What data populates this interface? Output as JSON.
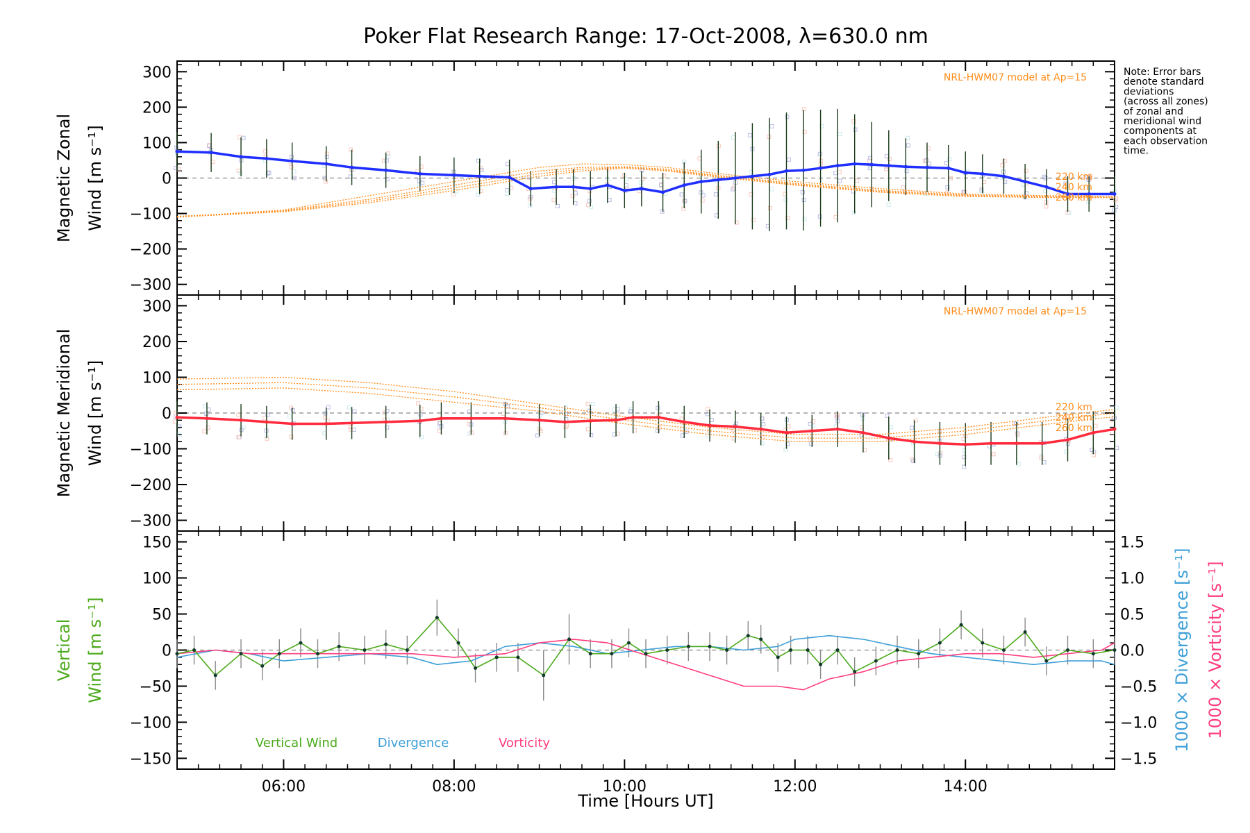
{
  "chart_data": {
    "title": "Poker Flat Research Range: 17-Oct-2008, λ=630.0 nm",
    "xlabel": "Time [Hours UT]",
    "xlim": [
      4.75,
      15.75
    ],
    "xticks": [
      6,
      8,
      10,
      12,
      14
    ],
    "xtick_labels": [
      "06:00",
      "08:00",
      "10:00",
      "12:00",
      "14:00"
    ],
    "note": [
      "Note: Error bars",
      "denote standard",
      "deviations",
      "(across all zones)",
      "of zonal and",
      "meridional wind",
      "components at",
      "each observation",
      "time."
    ],
    "colors": {
      "zonal": "#1f2fff",
      "meridional": "#ff2a3c",
      "model": "#ff8c1a",
      "vertical": "#4caa1c",
      "divergence": "#3d9fd8",
      "vorticity": "#ff3d7f",
      "errorbar": "#1a3a1a",
      "zone_points": "#9aa0d8"
    },
    "panels": [
      {
        "id": "zonal",
        "type": "line",
        "ylabel_line1": "Magnetic Zonal",
        "ylabel_line2": "Wind [m s⁻¹]",
        "ylim": [
          -330,
          330
        ],
        "yticks": [
          -300,
          -200,
          -100,
          0,
          100,
          200,
          300
        ],
        "ytick_labels": [
          "−300",
          "−200",
          "−100",
          "0",
          "100",
          "200",
          "300"
        ],
        "model_label": "NRL-HWM07 model at Ap=15",
        "altitude_labels": [
          "220 km",
          "240 km",
          "260 km"
        ],
        "series": [
          {
            "name": "Magnetic Zonal Wind",
            "x": [
              4.75,
              5.15,
              5.5,
              5.8,
              6.1,
              6.5,
              6.8,
              7.2,
              7.6,
              8.0,
              8.3,
              8.65,
              8.9,
              9.2,
              9.4,
              9.6,
              9.8,
              10.0,
              10.2,
              10.45,
              10.7,
              10.9,
              11.1,
              11.3,
              11.5,
              11.7,
              11.9,
              12.1,
              12.3,
              12.5,
              12.7,
              12.9,
              13.1,
              13.3,
              13.55,
              13.8,
              14.0,
              14.2,
              14.45,
              14.7,
              14.95,
              15.2,
              15.45,
              15.75
            ],
            "y": [
              75,
              72,
              60,
              55,
              48,
              40,
              30,
              22,
              12,
              8,
              5,
              2,
              -30,
              -25,
              -25,
              -30,
              -20,
              -35,
              -30,
              -40,
              -20,
              -10,
              -5,
              0,
              5,
              10,
              20,
              22,
              28,
              35,
              40,
              38,
              35,
              32,
              30,
              28,
              15,
              12,
              5,
              -10,
              -25,
              -45,
              -45,
              -45
            ],
            "err": [
              55,
              55,
              55,
              55,
              52,
              50,
              50,
              50,
              50,
              50,
              50,
              50,
              50,
              50,
              50,
              50,
              50,
              50,
              50,
              55,
              65,
              90,
              110,
              130,
              150,
              160,
              165,
              170,
              165,
              160,
              140,
              120,
              100,
              80,
              70,
              65,
              60,
              55,
              50,
              50,
              50,
              50,
              50,
              50
            ]
          },
          {
            "name": "model 220 km",
            "x": [
              4.75,
              6,
              7,
              8,
              9,
              9.5,
              10,
              10.5,
              11,
              12,
              13,
              14,
              15,
              15.75
            ],
            "y": [
              -110,
              -90,
              -50,
              -10,
              30,
              40,
              38,
              30,
              15,
              -10,
              -30,
              -45,
              -50,
              -52
            ]
          },
          {
            "name": "model 240 km",
            "x": [
              4.75,
              6,
              7,
              8,
              9,
              9.5,
              10,
              10.5,
              11,
              12,
              13,
              14,
              15,
              15.75
            ],
            "y": [
              -110,
              -92,
              -60,
              -20,
              20,
              30,
              32,
              25,
              10,
              -15,
              -35,
              -48,
              -52,
              -54
            ]
          },
          {
            "name": "model 260 km",
            "x": [
              4.75,
              6,
              7,
              8,
              9,
              9.5,
              10,
              10.5,
              11,
              12,
              13,
              14,
              15,
              15.75
            ],
            "y": [
              -110,
              -95,
              -70,
              -35,
              5,
              20,
              28,
              20,
              5,
              -20,
              -40,
              -52,
              -55,
              -55
            ]
          },
          {
            "name": "model 250 km",
            "x": [
              4.75,
              6,
              7,
              8,
              9,
              9.5,
              10,
              10.5,
              11,
              12,
              13,
              14,
              15,
              15.75
            ],
            "y": [
              -108,
              -94,
              -65,
              -28,
              12,
              25,
              30,
              22,
              8,
              -18,
              -38,
              -50,
              -54,
              -55
            ]
          }
        ]
      },
      {
        "id": "meridional",
        "type": "line",
        "ylabel_line1": "Magnetic Meridional",
        "ylabel_line2": "Wind [m s⁻¹]",
        "ylim": [
          -330,
          330
        ],
        "yticks": [
          -300,
          -200,
          -100,
          0,
          100,
          200,
          300
        ],
        "ytick_labels": [
          "−300",
          "−200",
          "−100",
          "0",
          "100",
          "200",
          "300"
        ],
        "model_label": "NRL-HWM07 model at Ap=15",
        "altitude_labels": [
          "220 km",
          "240 km",
          "260 km"
        ],
        "series": [
          {
            "name": "Magnetic Meridional Wind",
            "x": [
              4.75,
              5.1,
              5.5,
              5.8,
              6.1,
              6.5,
              6.8,
              7.2,
              7.6,
              7.85,
              8.2,
              8.6,
              9.0,
              9.3,
              9.6,
              9.9,
              10.1,
              10.4,
              10.7,
              11.0,
              11.3,
              11.6,
              11.9,
              12.2,
              12.5,
              12.8,
              13.1,
              13.4,
              13.7,
              14.0,
              14.3,
              14.6,
              14.9,
              15.2,
              15.5,
              15.75
            ],
            "y": [
              -12,
              -15,
              -20,
              -25,
              -30,
              -30,
              -28,
              -25,
              -22,
              -15,
              -15,
              -15,
              -20,
              -25,
              -22,
              -20,
              -12,
              -12,
              -25,
              -35,
              -38,
              -45,
              -55,
              -50,
              -45,
              -55,
              -70,
              -80,
              -85,
              -88,
              -85,
              -85,
              -85,
              -75,
              -55,
              -45
            ],
            "err": [
              45,
              45,
              45,
              45,
              45,
              45,
              45,
              45,
              45,
              45,
              45,
              45,
              45,
              45,
              45,
              45,
              45,
              45,
              45,
              45,
              45,
              45,
              45,
              45,
              50,
              55,
              60,
              60,
              60,
              60,
              60,
              60,
              60,
              60,
              60,
              60
            ]
          },
          {
            "name": "model 220 km",
            "x": [
              4.75,
              6,
              7,
              8,
              9,
              10,
              11,
              12,
              13,
              14,
              15,
              15.75
            ],
            "y": [
              95,
              100,
              85,
              60,
              25,
              -10,
              -40,
              -60,
              -60,
              -40,
              -10,
              10
            ]
          },
          {
            "name": "model 240 km",
            "x": [
              4.75,
              6,
              7,
              8,
              9,
              10,
              11,
              12,
              13,
              14,
              15,
              15.75
            ],
            "y": [
              80,
              85,
              70,
              45,
              15,
              -20,
              -50,
              -70,
              -70,
              -50,
              -20,
              0
            ]
          },
          {
            "name": "model 260 km",
            "x": [
              4.75,
              6,
              7,
              8,
              9,
              10,
              11,
              12,
              13,
              14,
              15,
              15.75
            ],
            "y": [
              65,
              70,
              55,
              30,
              5,
              -30,
              -60,
              -80,
              -80,
              -60,
              -30,
              -10
            ]
          }
        ]
      },
      {
        "id": "vertical",
        "type": "line",
        "ylabel_line1": "Vertical",
        "ylabel_line2": "Wind [m s⁻¹]",
        "ylim": [
          -165,
          165
        ],
        "yticks": [
          -150,
          -100,
          -50,
          0,
          50,
          100,
          150
        ],
        "ytick_labels": [
          "−150",
          "−100",
          "−50",
          "0",
          "50",
          "100",
          "150"
        ],
        "y2lim": [
          -1.65,
          1.65
        ],
        "y2ticks": [
          -1.5,
          -1.0,
          -0.5,
          0.0,
          0.5,
          1.0,
          1.5
        ],
        "y2tick_labels": [
          "−1.5",
          "−1.0",
          "−0.5",
          "0.0",
          "0.5",
          "1.0",
          "1.5"
        ],
        "y2label_divergence": "1000 × Divergence [s⁻¹]",
        "y2label_vorticity": "1000 × Vorticity [s⁻¹]",
        "legend": [
          "Vertical Wind",
          "Divergence",
          "Vorticity"
        ],
        "series": [
          {
            "name": "Vertical Wind",
            "x": [
              4.75,
              4.95,
              5.2,
              5.5,
              5.75,
              5.95,
              6.2,
              6.4,
              6.65,
              6.95,
              7.2,
              7.45,
              7.8,
              8.05,
              8.25,
              8.5,
              8.75,
              9.05,
              9.35,
              9.6,
              9.85,
              10.05,
              10.25,
              10.5,
              10.75,
              11.0,
              11.2,
              11.45,
              11.6,
              11.8,
              11.95,
              12.15,
              12.3,
              12.5,
              12.7,
              12.95,
              13.2,
              13.45,
              13.7,
              13.95,
              14.2,
              14.45,
              14.7,
              14.95,
              15.2,
              15.5,
              15.75
            ],
            "y": [
              -5,
              0,
              -35,
              -5,
              -22,
              -5,
              10,
              -5,
              5,
              0,
              8,
              0,
              45,
              10,
              -25,
              -10,
              -10,
              -35,
              15,
              -5,
              -5,
              10,
              -5,
              0,
              5,
              5,
              0,
              20,
              15,
              -10,
              0,
              0,
              -20,
              0,
              -30,
              -15,
              0,
              -5,
              10,
              35,
              10,
              0,
              25,
              -15,
              0,
              -5,
              0
            ],
            "err": [
              20,
              20,
              20,
              20,
              20,
              20,
              20,
              20,
              20,
              20,
              20,
              20,
              25,
              20,
              20,
              20,
              20,
              35,
              35,
              20,
              20,
              20,
              20,
              20,
              20,
              20,
              20,
              20,
              20,
              20,
              20,
              20,
              20,
              20,
              20,
              20,
              20,
              20,
              20,
              20,
              20,
              20,
              20,
              20,
              20,
              20,
              20
            ]
          },
          {
            "name": "Divergence",
            "axis": "y2",
            "x": [
              4.75,
              5.2,
              5.6,
              6.0,
              6.5,
              7.0,
              7.5,
              7.8,
              8.2,
              8.6,
              9.0,
              9.4,
              9.8,
              10.2,
              10.6,
              11.0,
              11.4,
              11.8,
              12.0,
              12.4,
              12.8,
              13.2,
              13.6,
              14.0,
              14.4,
              14.8,
              15.2,
              15.6,
              15.75
            ],
            "y": [
              -0.1,
              0.0,
              -0.05,
              -0.15,
              -0.1,
              -0.05,
              -0.1,
              -0.2,
              -0.15,
              0.05,
              0.1,
              0.05,
              -0.05,
              0.0,
              0.05,
              0.05,
              0.0,
              0.05,
              0.15,
              0.2,
              0.15,
              0.05,
              -0.05,
              -0.1,
              -0.15,
              -0.2,
              -0.15,
              -0.15,
              -0.2
            ]
          },
          {
            "name": "Vorticity",
            "axis": "y2",
            "x": [
              4.75,
              5.2,
              5.6,
              6.0,
              6.5,
              7.0,
              7.5,
              8.0,
              8.6,
              9.0,
              9.4,
              9.8,
              10.2,
              10.6,
              11.0,
              11.4,
              11.8,
              12.1,
              12.4,
              12.8,
              13.2,
              13.6,
              14.0,
              14.4,
              14.8,
              15.2,
              15.6,
              15.75
            ],
            "y": [
              -0.05,
              0.0,
              -0.05,
              -0.05,
              -0.05,
              -0.05,
              -0.05,
              -0.1,
              -0.05,
              0.1,
              0.15,
              0.1,
              -0.05,
              -0.2,
              -0.35,
              -0.5,
              -0.5,
              -0.55,
              -0.4,
              -0.3,
              -0.15,
              -0.1,
              -0.05,
              -0.05,
              -0.1,
              -0.05,
              0.0,
              0.1
            ]
          }
        ]
      }
    ]
  }
}
